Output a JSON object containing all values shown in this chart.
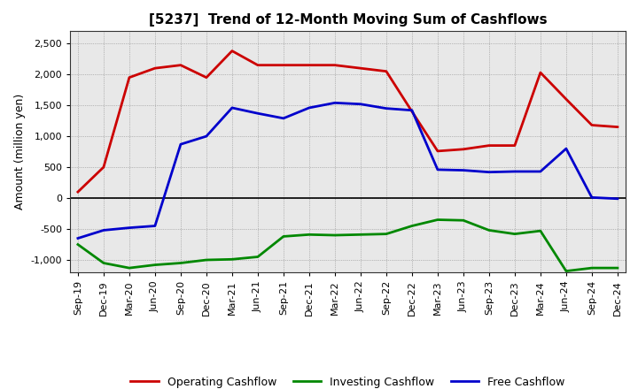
{
  "title": "[5237]  Trend of 12-Month Moving Sum of Cashflows",
  "ylabel": "Amount (million yen)",
  "x_labels": [
    "Sep-19",
    "Dec-19",
    "Mar-20",
    "Jun-20",
    "Sep-20",
    "Dec-20",
    "Mar-21",
    "Jun-21",
    "Sep-21",
    "Dec-21",
    "Mar-22",
    "Jun-22",
    "Sep-22",
    "Dec-22",
    "Mar-23",
    "Jun-23",
    "Sep-23",
    "Dec-23",
    "Mar-24",
    "Jun-24",
    "Sep-24",
    "Dec-24"
  ],
  "operating": [
    100,
    500,
    1950,
    2100,
    2150,
    1950,
    2380,
    2150,
    2150,
    2150,
    2150,
    2100,
    2050,
    1400,
    760,
    790,
    850,
    850,
    2030,
    1600,
    1180,
    1150
  ],
  "investing": [
    -750,
    -1050,
    -1130,
    -1080,
    -1050,
    -1000,
    -990,
    -950,
    -620,
    -590,
    -600,
    -590,
    -580,
    -450,
    -350,
    -360,
    -520,
    -580,
    -530,
    -1180,
    -1130,
    -1130
  ],
  "free": [
    -650,
    -520,
    -480,
    -450,
    870,
    1000,
    1460,
    1370,
    1290,
    1460,
    1540,
    1520,
    1450,
    1420,
    460,
    450,
    420,
    430,
    430,
    800,
    10,
    -10
  ],
  "operating_color": "#cc0000",
  "investing_color": "#008800",
  "free_color": "#0000cc",
  "ylim": [
    -1200,
    2700
  ],
  "yticks": [
    -1000,
    -500,
    0,
    500,
    1000,
    1500,
    2000,
    2500
  ],
  "plot_bg_color": "#e8e8e8",
  "grid_color": "#888888",
  "linewidth": 2.0,
  "title_fontsize": 11,
  "axis_fontsize": 8,
  "ylabel_fontsize": 9,
  "legend_fontsize": 9
}
